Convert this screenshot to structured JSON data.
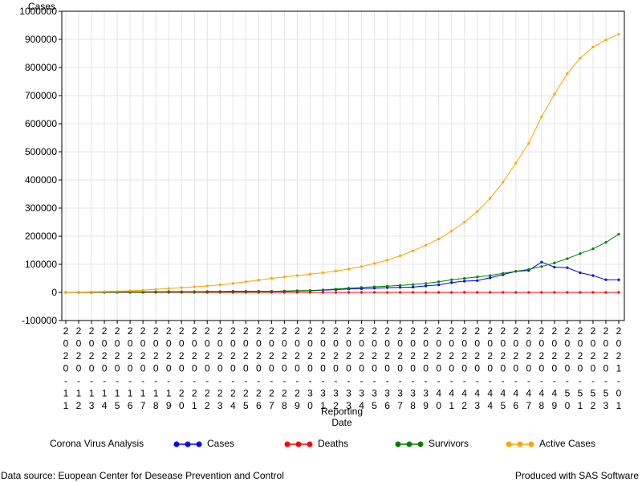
{
  "chart_data": {
    "type": "line",
    "title": "",
    "ylabel": "Cases",
    "xlabel": "Reporting Date",
    "ylim": [
      -100000,
      1000000
    ],
    "yticks": [
      -100000,
      0,
      100000,
      200000,
      300000,
      400000,
      500000,
      600000,
      700000,
      800000,
      900000,
      1000000
    ],
    "ytick_labels": [
      "-100000",
      "0",
      "100000",
      "200000",
      "300000",
      "400000",
      "500000",
      "600000",
      "700000",
      "800000",
      "900000",
      "1000000"
    ],
    "grid": true,
    "legend_title": "Corona Virus Analysis",
    "legend_position": "bottom",
    "x_tick_labels": [
      "2020-11",
      "2020-12",
      "2020-13",
      "2020-14",
      "2020-15",
      "2020-16",
      "2020-17",
      "2020-18",
      "2020-19",
      "2020-20",
      "2020-21",
      "2020-22",
      "2020-23",
      "2020-24",
      "2020-25",
      "2020-26",
      "2020-27",
      "2020-28",
      "2020-29",
      "2020-30",
      "2020-31",
      "2020-32",
      "2020-33",
      "2020-34",
      "2020-35",
      "2020-36",
      "2020-37",
      "2020-38",
      "2020-39",
      "2020-40",
      "2020-41",
      "2020-42",
      "2020-43",
      "2020-44",
      "2020-45",
      "2020-46",
      "2020-47",
      "2020-48",
      "2020-49",
      "2020-50",
      "2020-51",
      "2020-52",
      "2020-53",
      "2021-01"
    ],
    "series": [
      {
        "name": "Cases",
        "color": "#0000ff",
        "values": [
          0,
          500,
          1000,
          1500,
          1500,
          2000,
          2000,
          2000,
          2500,
          2500,
          2500,
          3000,
          3000,
          4000,
          4000,
          4000,
          4000,
          4000,
          5000,
          6000,
          8000,
          10000,
          12000,
          13000,
          15000,
          17000,
          18000,
          19000,
          23000,
          27000,
          35000,
          40000,
          42000,
          52000,
          63000,
          75000,
          78000,
          108000,
          90000,
          88000,
          70000,
          60000,
          45000,
          45000
        ]
      },
      {
        "name": "Deaths",
        "color": "#ff0000",
        "values": [
          0,
          0,
          0,
          0,
          0,
          0,
          0,
          0,
          0,
          0,
          0,
          0,
          0,
          0,
          0,
          0,
          0,
          0,
          0,
          0,
          0,
          0,
          0,
          0,
          0,
          0,
          0,
          0,
          0,
          0,
          0,
          0,
          0,
          0,
          0,
          0,
          0,
          0,
          0,
          0,
          0,
          0,
          0,
          0
        ]
      },
      {
        "name": "Survivors",
        "color": "#008000",
        "values": [
          0,
          500,
          500,
          500,
          500,
          1000,
          1000,
          1500,
          1500,
          2000,
          2000,
          2500,
          2500,
          3000,
          3000,
          3500,
          4000,
          5000,
          6000,
          7000,
          9000,
          12000,
          15000,
          18000,
          20000,
          22000,
          25000,
          28000,
          32000,
          38000,
          45000,
          50000,
          55000,
          60000,
          68000,
          75000,
          82000,
          92000,
          105000,
          120000,
          138000,
          155000,
          178000,
          207000
        ]
      },
      {
        "name": "Active Cases",
        "color": "#ffa500",
        "values": [
          0,
          1000,
          2000,
          3000,
          4000,
          6000,
          8000,
          11000,
          14000,
          17000,
          20000,
          23000,
          27000,
          32000,
          38000,
          44000,
          50000,
          55000,
          60000,
          65000,
          70000,
          76000,
          83000,
          92000,
          103000,
          115000,
          130000,
          148000,
          168000,
          190000,
          218000,
          250000,
          288000,
          335000,
          392000,
          460000,
          530000,
          625000,
          705000,
          778000,
          833000,
          873000,
          898000,
          918000
        ]
      }
    ]
  },
  "footnote_left": "Data source: Euopean Center for Desease Prevention and Control",
  "footnote_right": "Produced with SAS Software"
}
